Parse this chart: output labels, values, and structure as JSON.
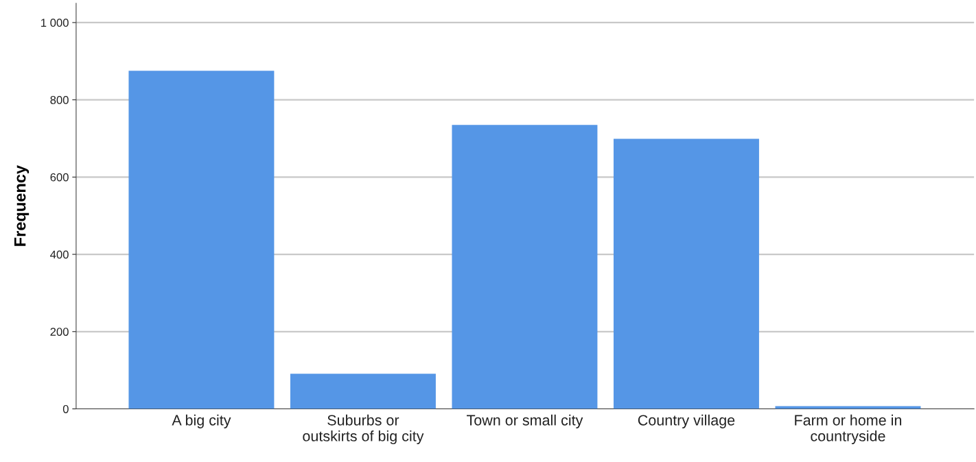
{
  "chart_data": {
    "type": "bar",
    "ylabel": "Frequency",
    "categories": [
      "A big city",
      "Suburbs or\noutskirts of big city",
      "Town or small city",
      "Country village",
      "Farm or home in\ncountryside"
    ],
    "values": [
      875,
      91,
      735,
      699,
      7
    ],
    "color": "#5596e6",
    "ylim": [
      0,
      1050
    ],
    "yticks": [
      0,
      200,
      400,
      600,
      800,
      {
        "value": 1000,
        "label": "1 000"
      }
    ],
    "grid": "y",
    "legend": false
  }
}
